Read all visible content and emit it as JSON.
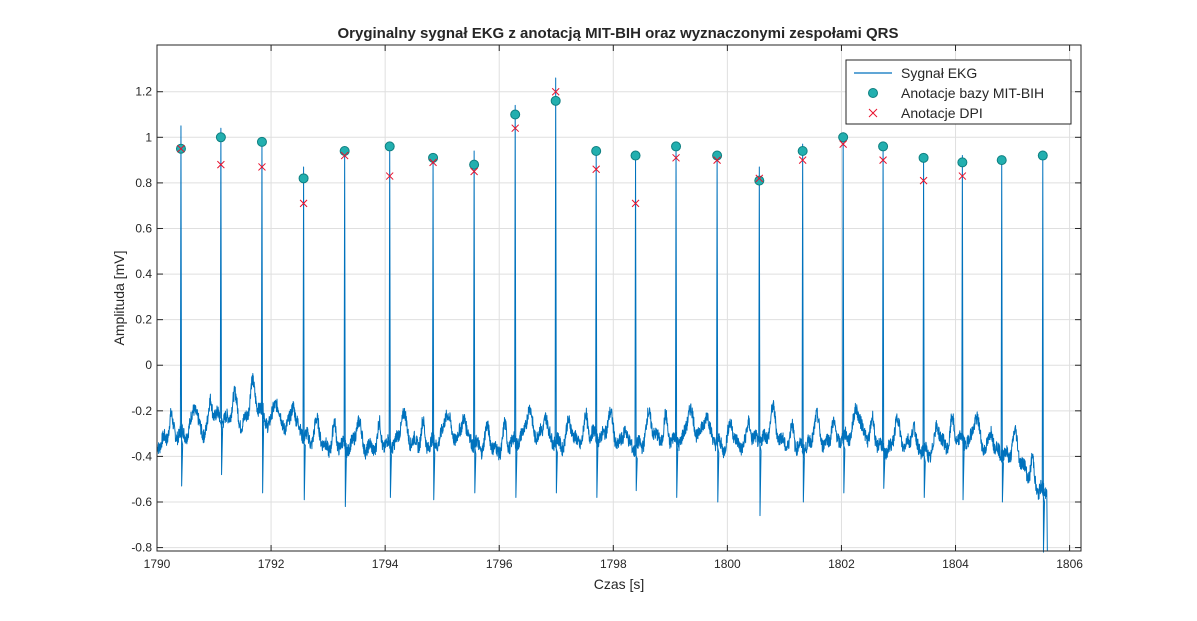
{
  "chart_data": {
    "type": "line",
    "title": "Oryginalny sygnał EKG z anotacją MIT-BIH oraz wyznaczonymi zespołami QRS",
    "xlabel": "Czas [s]",
    "ylabel": "Amplituda [mV]",
    "xlim": [
      1790,
      1806.2
    ],
    "ylim": [
      -0.815,
      1.405
    ],
    "xticks": [
      1790,
      1792,
      1794,
      1796,
      1798,
      1800,
      1802,
      1804,
      1806
    ],
    "yticks": [
      -0.8,
      -0.6,
      -0.4,
      -0.2,
      0,
      0.2,
      0.4,
      0.6,
      0.8,
      1,
      1.2
    ],
    "xtick_labels": [
      "1790",
      "1792",
      "1794",
      "1796",
      "1798",
      "1800",
      "1802",
      "1804",
      "1806"
    ],
    "ytick_labels": [
      "-0.8",
      "-0.6",
      "-0.4",
      "-0.2",
      "0",
      "0.2",
      "0.4",
      "0.6",
      "0.8",
      "1",
      "1.2"
    ],
    "grid": true,
    "legend_position": "top-right",
    "colors": {
      "signal": "#0072BD",
      "mitbih_fill": "#22AFAF",
      "mitbih_edge": "#0E7F80",
      "dpi": "#E8112D",
      "grid": "#DFDFDF",
      "axis": "#262626"
    },
    "series": [
      {
        "name": "Sygnał EKG",
        "kind": "line",
        "beats_x": [
          1790.42,
          1791.12,
          1791.84,
          1792.57,
          1793.29,
          1794.08,
          1794.84,
          1795.56,
          1796.28,
          1796.99,
          1797.7,
          1798.39,
          1799.1,
          1799.82,
          1800.56,
          1801.32,
          1802.03,
          1802.73,
          1803.44,
          1804.12,
          1804.81,
          1805.53
        ],
        "beats_peak": [
          1.05,
          1.04,
          0.98,
          0.87,
          0.94,
          0.97,
          0.92,
          0.94,
          1.14,
          1.26,
          0.95,
          0.93,
          0.96,
          0.93,
          0.87,
          0.97,
          1.02,
          0.96,
          0.92,
          0.92,
          0.91,
          0.92
        ],
        "beats_trough": [
          -0.53,
          -0.48,
          -0.56,
          -0.59,
          -0.62,
          -0.58,
          -0.59,
          -0.56,
          -0.58,
          -0.56,
          -0.58,
          -0.55,
          -0.58,
          -0.6,
          -0.66,
          -0.6,
          -0.56,
          -0.54,
          -0.58,
          -0.59,
          -0.6,
          -0.82
        ],
        "baseline": [
          [
            1790.0,
            -0.35
          ],
          [
            1790.3,
            -0.3
          ],
          [
            1790.8,
            -0.3
          ],
          [
            1791.0,
            -0.22
          ],
          [
            1791.5,
            -0.27
          ],
          [
            1791.7,
            -0.14
          ],
          [
            1792.0,
            -0.28
          ],
          [
            1792.4,
            -0.25
          ],
          [
            1792.8,
            -0.37
          ],
          [
            1793.2,
            -0.35
          ],
          [
            1793.6,
            -0.37
          ],
          [
            1794.0,
            -0.35
          ],
          [
            1794.4,
            -0.33
          ],
          [
            1794.7,
            -0.35
          ],
          [
            1795.0,
            -0.33
          ],
          [
            1795.4,
            -0.3
          ],
          [
            1795.8,
            -0.4
          ],
          [
            1796.0,
            -0.37
          ],
          [
            1796.4,
            -0.32
          ],
          [
            1796.8,
            -0.3
          ],
          [
            1797.2,
            -0.37
          ],
          [
            1797.6,
            -0.3
          ],
          [
            1798.0,
            -0.34
          ],
          [
            1798.4,
            -0.36
          ],
          [
            1798.8,
            -0.32
          ],
          [
            1799.2,
            -0.33
          ],
          [
            1799.6,
            -0.28
          ],
          [
            1800.0,
            -0.38
          ],
          [
            1800.4,
            -0.33
          ],
          [
            1800.8,
            -0.32
          ],
          [
            1801.2,
            -0.36
          ],
          [
            1801.6,
            -0.35
          ],
          [
            1802.0,
            -0.32
          ],
          [
            1802.4,
            -0.3
          ],
          [
            1802.8,
            -0.38
          ],
          [
            1803.2,
            -0.34
          ],
          [
            1803.6,
            -0.4
          ],
          [
            1804.0,
            -0.32
          ],
          [
            1804.4,
            -0.35
          ],
          [
            1804.8,
            -0.38
          ],
          [
            1805.2,
            -0.45
          ],
          [
            1805.45,
            -0.55
          ]
        ]
      },
      {
        "name": "Anotacje bazy MIT-BIH",
        "kind": "marker-circle",
        "x": [
          1790.42,
          1791.12,
          1791.84,
          1792.57,
          1793.29,
          1794.08,
          1794.84,
          1795.56,
          1796.28,
          1796.99,
          1797.7,
          1798.39,
          1799.1,
          1799.82,
          1800.56,
          1801.32,
          1802.03,
          1802.73,
          1803.44,
          1804.12,
          1804.81,
          1805.53
        ],
        "y": [
          0.95,
          1.0,
          0.98,
          0.82,
          0.94,
          0.96,
          0.91,
          0.88,
          1.1,
          1.16,
          0.94,
          0.92,
          0.96,
          0.92,
          0.81,
          0.94,
          1.0,
          0.96,
          0.91,
          0.89,
          0.9,
          0.92
        ]
      },
      {
        "name": "Anotacje DPI",
        "kind": "marker-x",
        "x": [
          1790.42,
          1791.12,
          1791.84,
          1792.57,
          1793.29,
          1794.08,
          1794.84,
          1795.56,
          1796.28,
          1796.99,
          1797.7,
          1798.39,
          1799.1,
          1799.82,
          1800.56,
          1801.32,
          1802.03,
          1802.73,
          1803.44,
          1804.12
        ],
        "y": [
          0.95,
          0.88,
          0.87,
          0.71,
          0.92,
          0.83,
          0.89,
          0.85,
          1.04,
          1.2,
          0.86,
          0.71,
          0.91,
          0.9,
          0.82,
          0.9,
          0.97,
          0.9,
          0.81,
          0.83
        ]
      }
    ]
  }
}
